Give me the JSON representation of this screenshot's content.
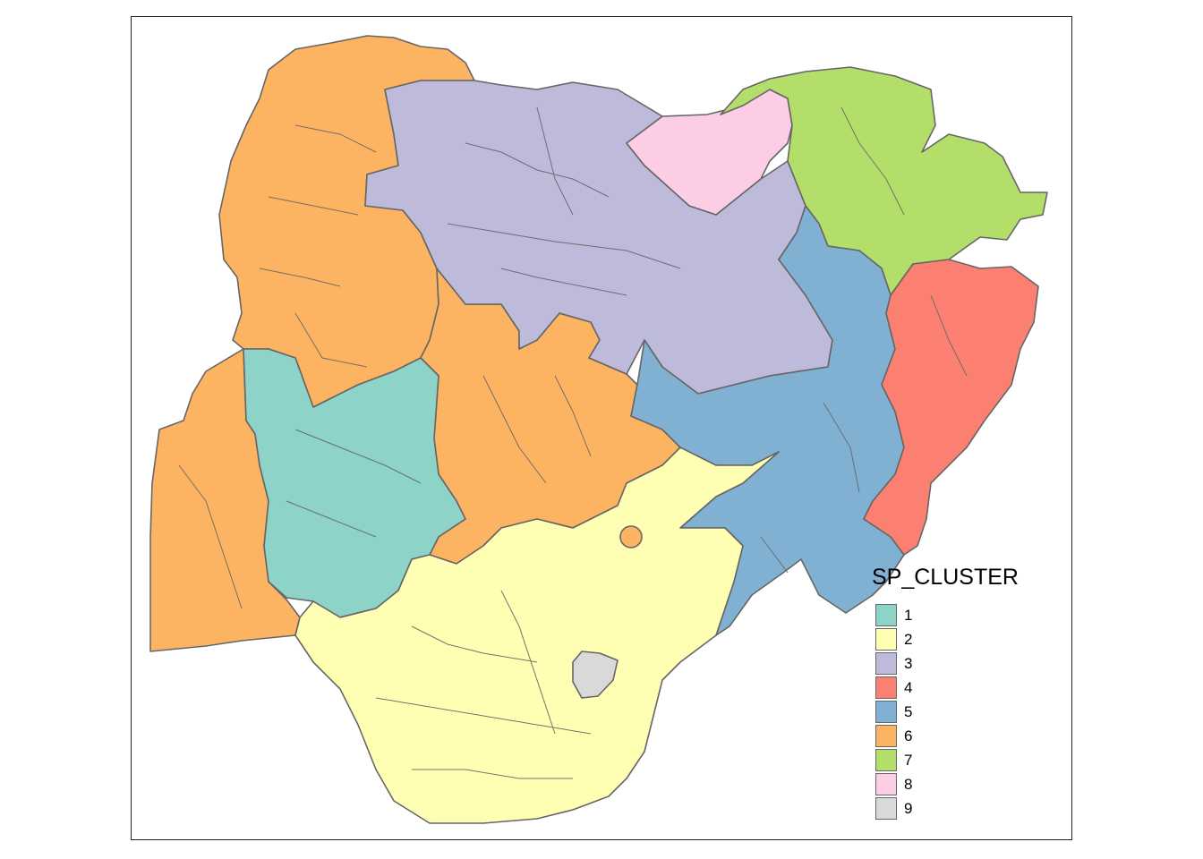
{
  "legend": {
    "title": "SP_CLUSTER",
    "items": [
      {
        "label": "1",
        "color": "#8DD3C7"
      },
      {
        "label": "2",
        "color": "#FFFFB3"
      },
      {
        "label": "3",
        "color": "#BEBADA"
      },
      {
        "label": "4",
        "color": "#FB8072"
      },
      {
        "label": "5",
        "color": "#80B1D3"
      },
      {
        "label": "6",
        "color": "#FDB462"
      },
      {
        "label": "7",
        "color": "#B3DE69"
      },
      {
        "label": "8",
        "color": "#FCCDE5"
      },
      {
        "label": "9",
        "color": "#D9D9D9"
      }
    ]
  },
  "border_color": "#666666"
}
